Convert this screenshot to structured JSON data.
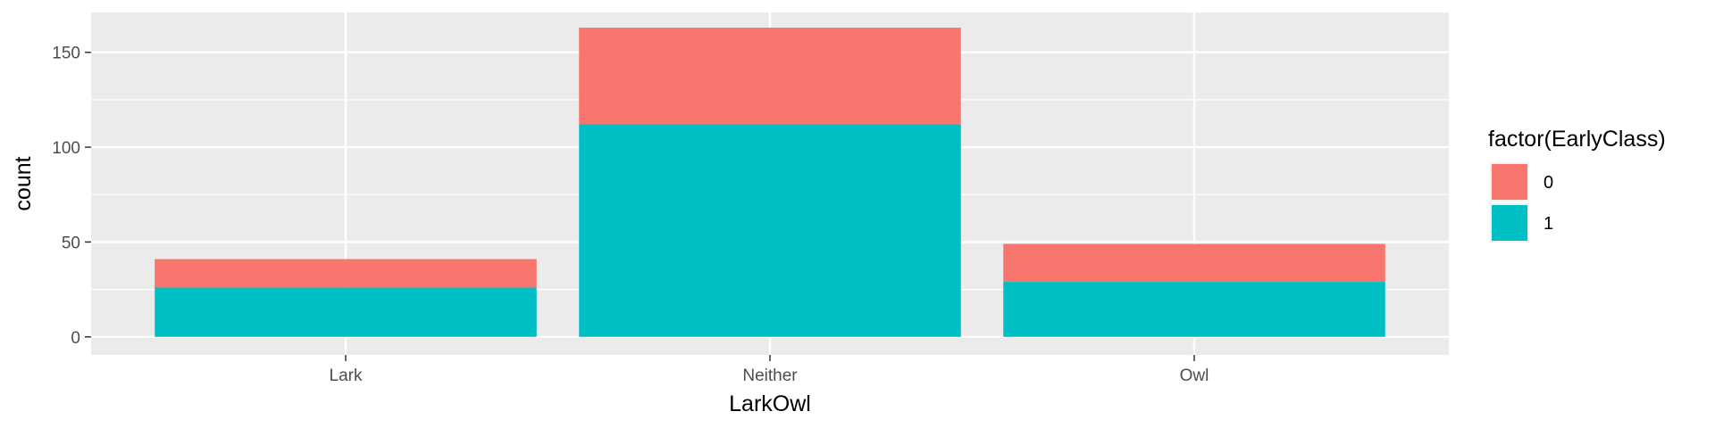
{
  "chart_data": {
    "type": "bar",
    "stacked": true,
    "categories": [
      "Lark",
      "Neither",
      "Owl"
    ],
    "series": [
      {
        "name": "0",
        "values": [
          15,
          51,
          20
        ],
        "color": "#F8766D"
      },
      {
        "name": "1",
        "values": [
          26,
          112,
          29
        ],
        "color": "#00BFC4"
      }
    ],
    "xlabel": "LarkOwl",
    "ylabel": "count",
    "ylim": [
      -9.5,
      171
    ],
    "yticks": [
      0,
      50,
      100,
      150
    ],
    "legend_title": "factor(EarlyClass)",
    "legend_position": "right",
    "grid": true,
    "panel_color": "#EBEBEB",
    "grid_color": "#FFFFFF"
  }
}
